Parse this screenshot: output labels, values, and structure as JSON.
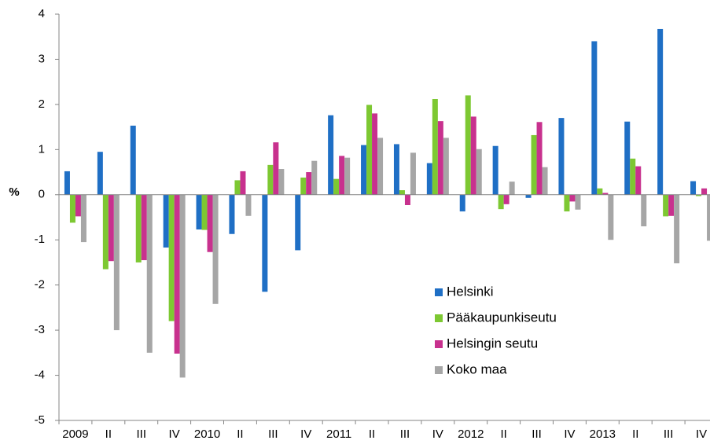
{
  "chart_data": {
    "type": "bar",
    "y_label": "%",
    "categories": [
      "2009",
      "II",
      "III",
      "IV",
      "2010",
      "II",
      "III",
      "IV",
      "2011",
      "II",
      "III",
      "IV",
      "2012",
      "II",
      "III",
      "IV",
      "2013",
      "II",
      "III",
      "IV"
    ],
    "series": [
      {
        "name": "Helsinki",
        "color": "#1f6fc5",
        "values": [
          0.52,
          0.95,
          1.53,
          -1.17,
          -0.77,
          -0.87,
          -2.15,
          -1.23,
          1.76,
          1.1,
          1.12,
          0.7,
          -0.37,
          1.08,
          -0.07,
          1.7,
          3.4,
          1.62,
          3.67,
          0.3
        ]
      },
      {
        "name": "Pääkaupunkiseutu",
        "color": "#7dc832",
        "values": [
          -0.62,
          -1.65,
          -1.5,
          -2.8,
          -0.78,
          0.32,
          0.66,
          0.38,
          0.35,
          1.99,
          0.1,
          2.12,
          2.2,
          -0.32,
          1.32,
          -0.37,
          0.14,
          0.8,
          -0.48,
          -0.03
        ]
      },
      {
        "name": "Helsingin seutu",
        "color": "#c8318e",
        "values": [
          -0.48,
          -1.47,
          -1.45,
          -3.52,
          -1.27,
          0.52,
          1.16,
          0.5,
          0.86,
          1.8,
          -0.23,
          1.63,
          1.73,
          -0.21,
          1.61,
          -0.15,
          0.04,
          0.63,
          -0.47,
          0.14
        ]
      },
      {
        "name": "Koko maa",
        "color": "#a6a6a6",
        "values": [
          -1.05,
          -3.0,
          -3.5,
          -4.05,
          -2.42,
          -0.47,
          0.57,
          0.75,
          0.82,
          1.26,
          0.93,
          1.26,
          1.01,
          0.29,
          0.61,
          -0.33,
          -1.0,
          -0.7,
          -1.52,
          -1.02
        ]
      }
    ],
    "ylim": [
      -5,
      4
    ],
    "yticks": [
      -5,
      -4,
      -3,
      -2,
      -1,
      0,
      1,
      2,
      3,
      4
    ],
    "grid": false
  }
}
